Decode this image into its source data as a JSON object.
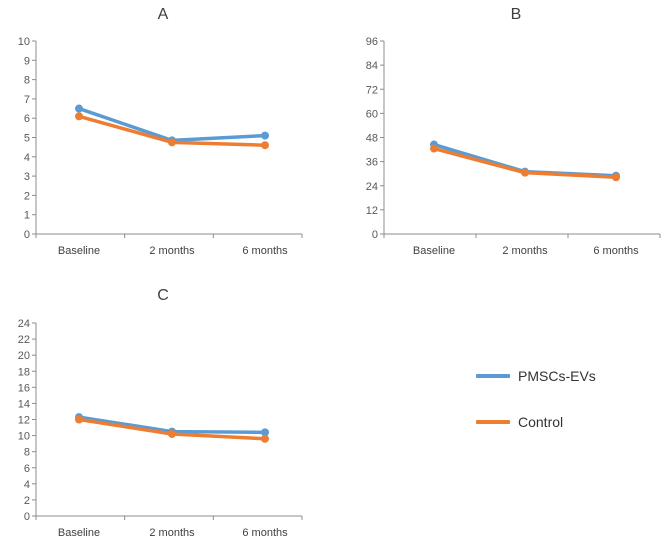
{
  "chart_data": [
    {
      "type": "line",
      "title": "A",
      "categories": [
        "Baseline",
        "2 months",
        "6 months"
      ],
      "ylim": [
        0,
        10
      ],
      "yticks": [
        0,
        1,
        2,
        3,
        4,
        5,
        6,
        7,
        8,
        9,
        10
      ],
      "xlabel": "",
      "ylabel": "",
      "series": [
        {
          "name": "PMSCs-EVs",
          "values": [
            6.5,
            4.85,
            5.1
          ]
        },
        {
          "name": "Control",
          "values": [
            6.1,
            4.75,
            4.6
          ]
        }
      ]
    },
    {
      "type": "line",
      "title": "B",
      "categories": [
        "Baseline",
        "2 months",
        "6 months"
      ],
      "ylim": [
        0,
        96
      ],
      "yticks": [
        0,
        12,
        24,
        36,
        48,
        60,
        72,
        84,
        96
      ],
      "xlabel": "",
      "ylabel": "",
      "series": [
        {
          "name": "PMSCs-EVs",
          "values": [
            44.5,
            31,
            29
          ]
        },
        {
          "name": "Control",
          "values": [
            42.5,
            30.5,
            28.2
          ]
        }
      ]
    },
    {
      "type": "line",
      "title": "C",
      "categories": [
        "Baseline",
        "2 months",
        "6 months"
      ],
      "ylim": [
        0,
        24
      ],
      "yticks": [
        0,
        2,
        4,
        6,
        8,
        10,
        12,
        14,
        16,
        18,
        20,
        22,
        24
      ],
      "xlabel": "",
      "ylabel": "",
      "series": [
        {
          "name": "PMSCs-EVs",
          "values": [
            12.3,
            10.5,
            10.4
          ]
        },
        {
          "name": "Control",
          "values": [
            12.0,
            10.2,
            9.6
          ]
        }
      ]
    }
  ],
  "legend": {
    "placement": "right",
    "items": [
      {
        "label": "PMSCs-EVs",
        "color": "#5b9bd5"
      },
      {
        "label": "Control",
        "color": "#ed7d31"
      }
    ]
  },
  "colors": {
    "PMSCs-EVs": "#5b9bd5",
    "Control": "#ed7d31",
    "axis": "#8c8c8c"
  }
}
